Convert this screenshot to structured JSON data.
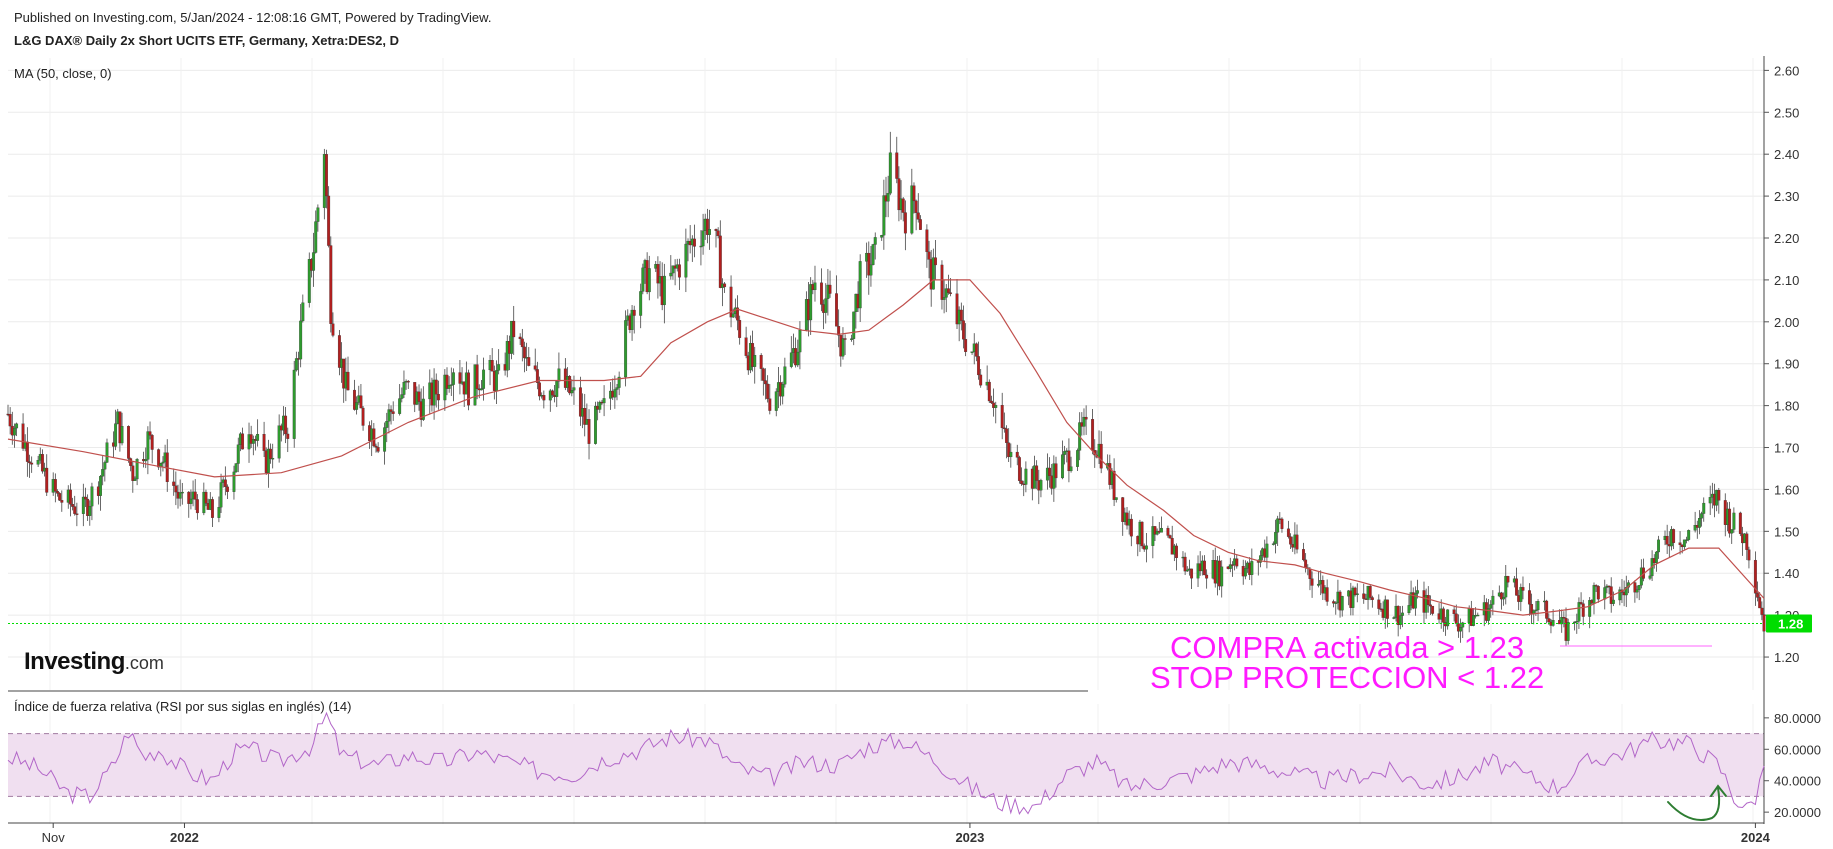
{
  "header": {
    "published": "Published on Investing.com, 5/Jan/2024 - 12:08:16 GMT, Powered by TradingView.",
    "title": "L&G DAX® Daily 2x Short UCITS ETF, Germany, Xetra:DES2, D",
    "ma_label": "MA (50, close, 0)",
    "rsi_label": "Índice de fuerza relativa (RSI por sus siglas en inglés) (14)"
  },
  "logo": {
    "brand": "Investing",
    "suffix": ".com"
  },
  "annotations": {
    "line1": "COMPRA activada > 1.23",
    "line2": "STOP PROTECCION < 1.22",
    "arrow_icon": "hand-drawn-arrow-icon"
  },
  "colors": {
    "up": "#2e9b2e",
    "down": "#b21f1f",
    "ma": "#c0504d",
    "rsi": "#b266c8",
    "rsi_band": "#f0dff0",
    "annotation": "#ff1aff",
    "price_line": "#00dd00"
  },
  "chart_data": [
    {
      "type": "candlestick",
      "y_ticks": [
        "2.60",
        "2.50",
        "2.40",
        "2.30",
        "2.20",
        "2.10",
        "2.00",
        "1.90",
        "1.80",
        "1.70",
        "1.60",
        "1.50",
        "1.40",
        "1.30",
        "1.20"
      ],
      "ylim": [
        1.15,
        2.62
      ],
      "last_price": "1.28",
      "x_ticks": [
        {
          "label": "Nov",
          "bold": false,
          "date": "2021-11-01"
        },
        {
          "label": "2022",
          "bold": true,
          "date": "2022-01-01"
        },
        {
          "label": "2023",
          "bold": true,
          "date": "2023-01-01"
        },
        {
          "label": "2024",
          "bold": true,
          "date": "2024-01-01"
        }
      ],
      "x_range": [
        "2021-10-11",
        "2024-01-05"
      ],
      "price_path": [
        [
          "2021-10-11",
          1.78
        ],
        [
          "2021-10-20",
          1.7
        ],
        [
          "2021-11-03",
          1.58
        ],
        [
          "2021-11-15",
          1.55
        ],
        [
          "2021-11-22",
          1.62
        ],
        [
          "2021-12-01",
          1.76
        ],
        [
          "2021-12-08",
          1.64
        ],
        [
          "2021-12-15",
          1.72
        ],
        [
          "2021-12-22",
          1.67
        ],
        [
          "2021-12-31",
          1.56
        ],
        [
          "2022-01-06",
          1.58
        ],
        [
          "2022-01-14",
          1.54
        ],
        [
          "2022-01-24",
          1.66
        ],
        [
          "2022-01-31",
          1.76
        ],
        [
          "2022-02-07",
          1.66
        ],
        [
          "2022-02-14",
          1.73
        ],
        [
          "2022-02-18",
          1.75
        ],
        [
          "2022-02-24",
          1.98
        ],
        [
          "2022-03-02",
          2.18
        ],
        [
          "2022-03-07",
          2.42
        ],
        [
          "2022-03-10",
          2.04
        ],
        [
          "2022-03-17",
          1.84
        ],
        [
          "2022-03-24",
          1.78
        ],
        [
          "2022-04-01",
          1.72
        ],
        [
          "2022-04-08",
          1.8
        ],
        [
          "2022-04-14",
          1.84
        ],
        [
          "2022-04-22",
          1.8
        ],
        [
          "2022-04-29",
          1.84
        ],
        [
          "2022-05-06",
          1.9
        ],
        [
          "2022-05-13",
          1.84
        ],
        [
          "2022-05-20",
          1.88
        ],
        [
          "2022-05-27",
          1.86
        ],
        [
          "2022-06-03",
          1.98
        ],
        [
          "2022-06-10",
          1.88
        ],
        [
          "2022-06-17",
          1.84
        ],
        [
          "2022-06-24",
          1.86
        ],
        [
          "2022-07-01",
          1.82
        ],
        [
          "2022-07-08",
          1.74
        ],
        [
          "2022-07-15",
          1.79
        ],
        [
          "2022-07-22",
          1.9
        ],
        [
          "2022-07-29",
          2.06
        ],
        [
          "2022-08-05",
          2.12
        ],
        [
          "2022-08-12",
          2.07
        ],
        [
          "2022-08-19",
          2.14
        ],
        [
          "2022-08-26",
          2.2
        ],
        [
          "2022-09-01",
          2.24
        ],
        [
          "2022-09-06",
          2.16
        ],
        [
          "2022-09-09",
          2.06
        ],
        [
          "2022-09-15",
          2.0
        ],
        [
          "2022-09-23",
          1.88
        ],
        [
          "2022-09-30",
          1.82
        ],
        [
          "2022-10-07",
          1.88
        ],
        [
          "2022-10-14",
          1.96
        ],
        [
          "2022-10-21",
          2.1
        ],
        [
          "2022-10-28",
          2.04
        ],
        [
          "2022-11-04",
          1.92
        ],
        [
          "2022-11-11",
          2.1
        ],
        [
          "2022-11-18",
          2.16
        ],
        [
          "2022-11-25",
          2.36
        ],
        [
          "2022-12-02",
          2.26
        ],
        [
          "2022-12-07",
          2.3
        ],
        [
          "2022-12-13",
          2.12
        ],
        [
          "2022-12-20",
          2.08
        ],
        [
          "2022-12-28",
          1.98
        ],
        [
          "2023-01-05",
          1.9
        ],
        [
          "2023-01-12",
          1.82
        ],
        [
          "2023-01-19",
          1.68
        ],
        [
          "2023-01-26",
          1.64
        ],
        [
          "2023-02-02",
          1.62
        ],
        [
          "2023-02-09",
          1.64
        ],
        [
          "2023-02-16",
          1.68
        ],
        [
          "2023-02-23",
          1.74
        ],
        [
          "2023-03-02",
          1.7
        ],
        [
          "2023-03-09",
          1.6
        ],
        [
          "2023-03-16",
          1.52
        ],
        [
          "2023-03-23",
          1.48
        ],
        [
          "2023-03-30",
          1.48
        ],
        [
          "2023-04-06",
          1.46
        ],
        [
          "2023-04-13",
          1.4
        ],
        [
          "2023-04-20",
          1.42
        ],
        [
          "2023-04-27",
          1.4
        ],
        [
          "2023-05-04",
          1.44
        ],
        [
          "2023-05-11",
          1.4
        ],
        [
          "2023-05-18",
          1.46
        ],
        [
          "2023-05-25",
          1.52
        ],
        [
          "2023-06-01",
          1.46
        ],
        [
          "2023-06-08",
          1.4
        ],
        [
          "2023-06-15",
          1.36
        ],
        [
          "2023-06-22",
          1.34
        ],
        [
          "2023-06-29",
          1.34
        ],
        [
          "2023-07-06",
          1.34
        ],
        [
          "2023-07-13",
          1.32
        ],
        [
          "2023-07-20",
          1.3
        ],
        [
          "2023-07-27",
          1.34
        ],
        [
          "2023-08-03",
          1.32
        ],
        [
          "2023-08-10",
          1.3
        ],
        [
          "2023-08-17",
          1.28
        ],
        [
          "2023-08-24",
          1.3
        ],
        [
          "2023-08-31",
          1.32
        ],
        [
          "2023-09-07",
          1.38
        ],
        [
          "2023-09-14",
          1.34
        ],
        [
          "2023-09-21",
          1.32
        ],
        [
          "2023-09-28",
          1.3
        ],
        [
          "2023-10-05",
          1.26
        ],
        [
          "2023-10-12",
          1.32
        ],
        [
          "2023-10-19",
          1.36
        ],
        [
          "2023-10-26",
          1.34
        ],
        [
          "2023-11-02",
          1.36
        ],
        [
          "2023-11-09",
          1.4
        ],
        [
          "2023-11-16",
          1.44
        ],
        [
          "2023-11-23",
          1.5
        ],
        [
          "2023-11-30",
          1.48
        ],
        [
          "2023-12-07",
          1.54
        ],
        [
          "2023-12-14",
          1.58
        ],
        [
          "2023-12-21",
          1.52
        ],
        [
          "2023-12-28",
          1.48
        ],
        [
          "2024-01-05",
          1.28
        ]
      ],
      "ma50_path": [
        [
          "2021-10-11",
          1.72
        ],
        [
          "2021-11-15",
          1.69
        ],
        [
          "2021-12-15",
          1.66
        ],
        [
          "2022-01-15",
          1.63
        ],
        [
          "2022-02-15",
          1.64
        ],
        [
          "2022-03-15",
          1.68
        ],
        [
          "2022-04-15",
          1.76
        ],
        [
          "2022-05-15",
          1.82
        ],
        [
          "2022-06-15",
          1.86
        ],
        [
          "2022-07-15",
          1.86
        ],
        [
          "2022-08-01",
          1.87
        ],
        [
          "2022-08-15",
          1.95
        ],
        [
          "2022-09-01",
          2.0
        ],
        [
          "2022-09-15",
          2.03
        ],
        [
          "2022-10-15",
          1.98
        ],
        [
          "2022-11-01",
          1.97
        ],
        [
          "2022-11-15",
          1.98
        ],
        [
          "2022-12-01",
          2.04
        ],
        [
          "2022-12-15",
          2.1
        ],
        [
          "2023-01-01",
          2.1
        ],
        [
          "2023-01-15",
          2.02
        ],
        [
          "2023-02-01",
          1.88
        ],
        [
          "2023-02-15",
          1.76
        ],
        [
          "2023-03-01",
          1.68
        ],
        [
          "2023-03-15",
          1.61
        ],
        [
          "2023-04-01",
          1.55
        ],
        [
          "2023-04-15",
          1.49
        ],
        [
          "2023-05-01",
          1.45
        ],
        [
          "2023-05-15",
          1.43
        ],
        [
          "2023-06-01",
          1.42
        ],
        [
          "2023-06-15",
          1.4
        ],
        [
          "2023-07-01",
          1.38
        ],
        [
          "2023-07-15",
          1.36
        ],
        [
          "2023-08-01",
          1.34
        ],
        [
          "2023-08-15",
          1.32
        ],
        [
          "2023-09-01",
          1.31
        ],
        [
          "2023-09-15",
          1.3
        ],
        [
          "2023-10-01",
          1.31
        ],
        [
          "2023-10-15",
          1.32
        ],
        [
          "2023-11-01",
          1.36
        ],
        [
          "2023-11-15",
          1.42
        ],
        [
          "2023-12-01",
          1.46
        ],
        [
          "2023-12-15",
          1.46
        ],
        [
          "2024-01-05",
          1.34
        ]
      ]
    },
    {
      "type": "line",
      "name": "RSI (14)",
      "y_ticks": [
        "80.0000",
        "60.0000",
        "40.0000",
        "20.0000"
      ],
      "ylim": [
        15,
        85
      ],
      "band": [
        30,
        70
      ],
      "x_range": [
        "2021-10-11",
        "2024-01-05"
      ],
      "path": [
        [
          "2021-10-11",
          55
        ],
        [
          "2021-10-25",
          48
        ],
        [
          "2021-11-08",
          32
        ],
        [
          "2021-11-18",
          30
        ],
        [
          "2021-11-29",
          50
        ],
        [
          "2021-12-06",
          72
        ],
        [
          "2021-12-13",
          55
        ],
        [
          "2021-12-20",
          60
        ],
        [
          "2022-01-03",
          45
        ],
        [
          "2022-01-14",
          40
        ],
        [
          "2022-01-24",
          58
        ],
        [
          "2022-02-01",
          60
        ],
        [
          "2022-02-14",
          52
        ],
        [
          "2022-03-01",
          62
        ],
        [
          "2022-03-08",
          82
        ],
        [
          "2022-03-15",
          56
        ],
        [
          "2022-04-01",
          50
        ],
        [
          "2022-04-15",
          56
        ],
        [
          "2022-05-02",
          52
        ],
        [
          "2022-05-16",
          58
        ],
        [
          "2022-06-01",
          52
        ],
        [
          "2022-06-15",
          46
        ],
        [
          "2022-07-01",
          44
        ],
        [
          "2022-07-15",
          54
        ],
        [
          "2022-08-01",
          60
        ],
        [
          "2022-08-15",
          68
        ],
        [
          "2022-09-01",
          66
        ],
        [
          "2022-09-15",
          48
        ],
        [
          "2022-10-01",
          42
        ],
        [
          "2022-10-15",
          52
        ],
        [
          "2022-11-01",
          50
        ],
        [
          "2022-11-15",
          62
        ],
        [
          "2022-12-01",
          66
        ],
        [
          "2022-12-15",
          54
        ],
        [
          "2023-01-01",
          36
        ],
        [
          "2023-01-15",
          26
        ],
        [
          "2023-02-01",
          24
        ],
        [
          "2023-02-15",
          44
        ],
        [
          "2023-03-01",
          52
        ],
        [
          "2023-03-15",
          36
        ],
        [
          "2023-04-01",
          40
        ],
        [
          "2023-04-15",
          44
        ],
        [
          "2023-05-01",
          52
        ],
        [
          "2023-05-15",
          50
        ],
        [
          "2023-06-01",
          44
        ],
        [
          "2023-06-15",
          40
        ],
        [
          "2023-07-01",
          44
        ],
        [
          "2023-07-15",
          46
        ],
        [
          "2023-08-01",
          38
        ],
        [
          "2023-08-15",
          42
        ],
        [
          "2023-09-01",
          52
        ],
        [
          "2023-09-15",
          44
        ],
        [
          "2023-10-01",
          36
        ],
        [
          "2023-10-15",
          52
        ],
        [
          "2023-11-01",
          58
        ],
        [
          "2023-11-15",
          66
        ],
        [
          "2023-12-01",
          64
        ],
        [
          "2023-12-15",
          50
        ],
        [
          "2023-12-22",
          30
        ],
        [
          "2023-12-28",
          22
        ],
        [
          "2024-01-02",
          32
        ],
        [
          "2024-01-05",
          52
        ]
      ]
    }
  ]
}
